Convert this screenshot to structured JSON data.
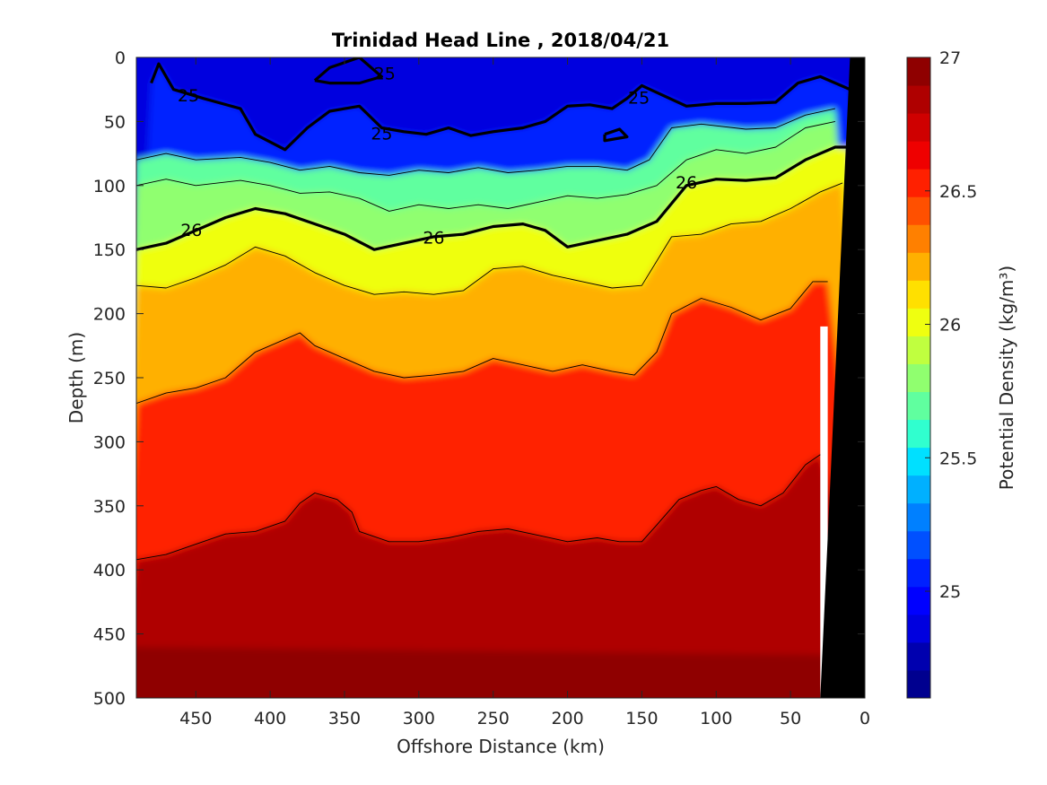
{
  "chart_data": {
    "type": "heatmap",
    "subtype": "filled-contour",
    "title": "Trinidad Head Line , 2018/04/21",
    "xlabel": "Offshore Distance (km)",
    "ylabel": "Depth (m)",
    "xlim": [
      490,
      0
    ],
    "ylim": [
      0,
      500
    ],
    "x_reversed": true,
    "y_reversed": true,
    "xticks": [
      450,
      400,
      350,
      300,
      250,
      200,
      150,
      100,
      50,
      0
    ],
    "xtick_labels": [
      "450",
      "400",
      "350",
      "300",
      "250",
      "200",
      "150",
      "100",
      "50",
      "0"
    ],
    "yticks": [
      0,
      50,
      100,
      150,
      200,
      250,
      300,
      350,
      400,
      450,
      500
    ],
    "ytick_labels": [
      "0",
      "50",
      "100",
      "150",
      "200",
      "250",
      "300",
      "350",
      "400",
      "450",
      "500"
    ],
    "colorbar": {
      "label": "Potential Density (kg/m³)",
      "range": [
        24.6,
        27.0
      ],
      "ticks": [
        25,
        25.5,
        26,
        26.5,
        27
      ],
      "tick_labels": [
        "25",
        "25.5",
        "26",
        "26.5",
        "27"
      ],
      "colors": [
        "#00008f",
        "#0000af",
        "#0000df",
        "#0000ff",
        "#0020ff",
        "#0050ff",
        "#0080ff",
        "#00b0ff",
        "#00e0ff",
        "#30ffcf",
        "#60ff9f",
        "#90ff6f",
        "#c0ff3f",
        "#efff10",
        "#ffe000",
        "#ffb000",
        "#ff8000",
        "#ff5000",
        "#ff2000",
        "#ef0000",
        "#cf0000",
        "#af0000",
        "#8f0000"
      ]
    },
    "isopycnals": [
      {
        "level": 25.0,
        "bold": true,
        "points": [
          [
            480,
            20
          ],
          [
            475,
            5
          ],
          [
            465,
            25
          ],
          [
            445,
            32
          ],
          [
            420,
            40
          ],
          [
            410,
            60
          ],
          [
            390,
            72
          ],
          [
            375,
            55
          ],
          [
            360,
            42
          ],
          [
            340,
            38
          ],
          [
            325,
            55
          ],
          [
            310,
            58
          ],
          [
            295,
            60
          ],
          [
            280,
            55
          ],
          [
            265,
            61
          ],
          [
            250,
            58
          ],
          [
            230,
            55
          ],
          [
            215,
            50
          ],
          [
            200,
            38
          ],
          [
            185,
            37
          ],
          [
            170,
            40
          ],
          [
            160,
            32
          ],
          [
            150,
            22
          ],
          [
            120,
            38
          ],
          [
            100,
            36
          ],
          [
            80,
            36
          ],
          [
            60,
            35
          ],
          [
            45,
            20
          ],
          [
            30,
            15
          ],
          [
            10,
            25
          ]
        ]
      },
      {
        "level": 25.0,
        "bold": true,
        "points": [
          [
            370,
            18
          ],
          [
            360,
            8
          ],
          [
            340,
            0
          ],
          [
            325,
            15
          ],
          [
            340,
            20
          ],
          [
            360,
            20
          ],
          [
            370,
            18
          ]
        ]
      },
      {
        "level": 25.0,
        "bold": true,
        "points": [
          [
            175,
            60
          ],
          [
            165,
            56
          ],
          [
            160,
            62
          ],
          [
            175,
            65
          ],
          [
            175,
            60
          ]
        ]
      },
      {
        "level": 25.6,
        "bold": false,
        "points": [
          [
            490,
            80
          ],
          [
            470,
            75
          ],
          [
            450,
            80
          ],
          [
            420,
            78
          ],
          [
            400,
            82
          ],
          [
            380,
            88
          ],
          [
            360,
            85
          ],
          [
            340,
            90
          ],
          [
            320,
            92
          ],
          [
            300,
            88
          ],
          [
            280,
            90
          ],
          [
            260,
            86
          ],
          [
            240,
            90
          ],
          [
            220,
            88
          ],
          [
            200,
            85
          ],
          [
            180,
            85
          ],
          [
            160,
            88
          ],
          [
            145,
            80
          ],
          [
            130,
            55
          ],
          [
            110,
            52
          ],
          [
            80,
            56
          ],
          [
            60,
            55
          ],
          [
            40,
            45
          ],
          [
            20,
            40
          ]
        ]
      },
      {
        "level": 25.8,
        "bold": false,
        "points": [
          [
            490,
            100
          ],
          [
            470,
            95
          ],
          [
            450,
            100
          ],
          [
            420,
            96
          ],
          [
            400,
            100
          ],
          [
            380,
            106
          ],
          [
            360,
            105
          ],
          [
            340,
            110
          ],
          [
            320,
            120
          ],
          [
            300,
            115
          ],
          [
            280,
            118
          ],
          [
            260,
            115
          ],
          [
            240,
            118
          ],
          [
            220,
            113
          ],
          [
            200,
            108
          ],
          [
            180,
            110
          ],
          [
            160,
            107
          ],
          [
            140,
            100
          ],
          [
            120,
            80
          ],
          [
            100,
            72
          ],
          [
            80,
            75
          ],
          [
            60,
            70
          ],
          [
            40,
            55
          ],
          [
            20,
            50
          ]
        ]
      },
      {
        "level": 26.0,
        "bold": true,
        "points": [
          [
            490,
            150
          ],
          [
            470,
            145
          ],
          [
            450,
            135
          ],
          [
            430,
            125
          ],
          [
            410,
            118
          ],
          [
            390,
            122
          ],
          [
            370,
            130
          ],
          [
            350,
            138
          ],
          [
            330,
            150
          ],
          [
            310,
            145
          ],
          [
            290,
            140
          ],
          [
            270,
            138
          ],
          [
            250,
            132
          ],
          [
            230,
            130
          ],
          [
            215,
            135
          ],
          [
            200,
            148
          ],
          [
            180,
            143
          ],
          [
            160,
            138
          ],
          [
            140,
            128
          ],
          [
            120,
            100
          ],
          [
            100,
            95
          ],
          [
            80,
            96
          ],
          [
            60,
            94
          ],
          [
            40,
            80
          ],
          [
            20,
            70
          ],
          [
            10,
            70
          ]
        ]
      },
      {
        "level": 26.2,
        "bold": false,
        "points": [
          [
            490,
            178
          ],
          [
            470,
            180
          ],
          [
            450,
            172
          ],
          [
            430,
            162
          ],
          [
            410,
            148
          ],
          [
            390,
            155
          ],
          [
            370,
            168
          ],
          [
            350,
            178
          ],
          [
            330,
            185
          ],
          [
            310,
            183
          ],
          [
            290,
            185
          ],
          [
            270,
            182
          ],
          [
            250,
            165
          ],
          [
            230,
            163
          ],
          [
            210,
            170
          ],
          [
            190,
            175
          ],
          [
            170,
            180
          ],
          [
            150,
            178
          ],
          [
            130,
            140
          ],
          [
            110,
            138
          ],
          [
            90,
            130
          ],
          [
            70,
            128
          ],
          [
            50,
            118
          ],
          [
            30,
            105
          ],
          [
            15,
            98
          ]
        ]
      },
      {
        "level": 26.5,
        "bold": false,
        "points": [
          [
            490,
            270
          ],
          [
            470,
            262
          ],
          [
            450,
            258
          ],
          [
            430,
            250
          ],
          [
            410,
            230
          ],
          [
            390,
            220
          ],
          [
            380,
            215
          ],
          [
            370,
            225
          ],
          [
            350,
            235
          ],
          [
            330,
            245
          ],
          [
            310,
            250
          ],
          [
            290,
            248
          ],
          [
            270,
            245
          ],
          [
            250,
            235
          ],
          [
            230,
            240
          ],
          [
            210,
            245
          ],
          [
            190,
            240
          ],
          [
            170,
            245
          ],
          [
            155,
            248
          ],
          [
            140,
            230
          ],
          [
            130,
            200
          ],
          [
            110,
            188
          ],
          [
            90,
            195
          ],
          [
            70,
            205
          ],
          [
            50,
            196
          ],
          [
            35,
            175
          ],
          [
            25,
            175
          ]
        ]
      },
      {
        "level": 26.8,
        "bold": false,
        "points": [
          [
            490,
            392
          ],
          [
            470,
            388
          ],
          [
            450,
            380
          ],
          [
            430,
            372
          ],
          [
            410,
            370
          ],
          [
            390,
            362
          ],
          [
            380,
            348
          ],
          [
            370,
            340
          ],
          [
            355,
            345
          ],
          [
            345,
            355
          ],
          [
            340,
            370
          ],
          [
            320,
            378
          ],
          [
            300,
            378
          ],
          [
            280,
            375
          ],
          [
            260,
            370
          ],
          [
            240,
            368
          ],
          [
            220,
            373
          ],
          [
            200,
            378
          ],
          [
            180,
            375
          ],
          [
            165,
            378
          ],
          [
            150,
            378
          ],
          [
            140,
            365
          ],
          [
            125,
            345
          ],
          [
            110,
            338
          ],
          [
            100,
            335
          ],
          [
            85,
            345
          ],
          [
            70,
            350
          ],
          [
            55,
            340
          ],
          [
            40,
            318
          ],
          [
            30,
            310
          ]
        ]
      }
    ],
    "contour_labels": [
      {
        "text": "25",
        "x": 455,
        "y": 30
      },
      {
        "text": "25",
        "x": 323,
        "y": 13
      },
      {
        "text": "25",
        "x": 325,
        "y": 60
      },
      {
        "text": "25",
        "x": 152,
        "y": 32
      },
      {
        "text": "26",
        "x": 453,
        "y": 135
      },
      {
        "text": "26",
        "x": 290,
        "y": 141
      },
      {
        "text": "26",
        "x": 120,
        "y": 98
      }
    ],
    "land_mask": [
      [
        10,
        0
      ],
      [
        0,
        0
      ],
      [
        0,
        500
      ],
      [
        30,
        500
      ],
      [
        10,
        0
      ]
    ],
    "no_data_gap": [
      [
        30,
        210
      ],
      [
        30,
        500
      ],
      [
        25,
        500
      ],
      [
        25,
        210
      ]
    ]
  }
}
